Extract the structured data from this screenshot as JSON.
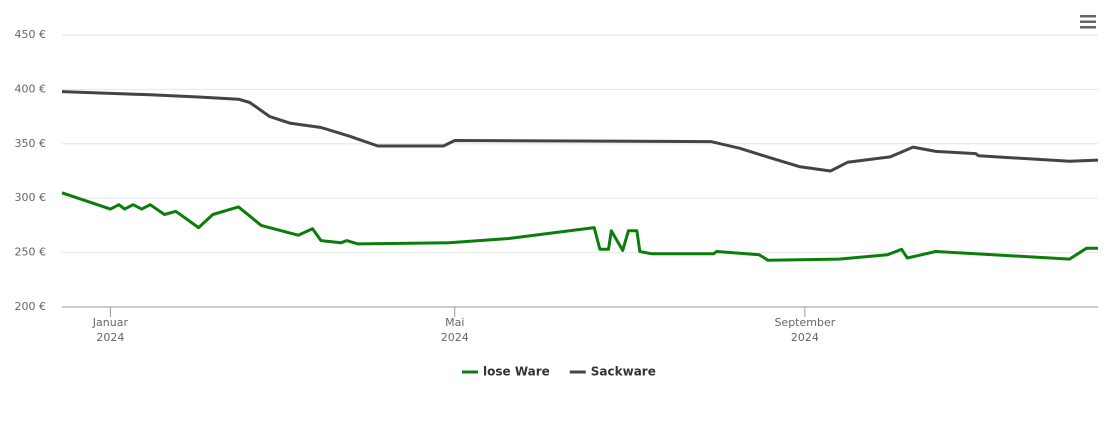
{
  "chart_data": {
    "type": "line",
    "x": null,
    "xlim": [
      "2023-12-15",
      "2024-12-13"
    ],
    "xticks": [
      {
        "value": "2024-01-01",
        "label": [
          "Januar",
          "2024"
        ]
      },
      {
        "value": "2024-05-01",
        "label": [
          "Mai",
          "2024"
        ]
      },
      {
        "value": "2024-09-01",
        "label": [
          "September",
          "2024"
        ]
      }
    ],
    "ylim": [
      200,
      450
    ],
    "yticks": [
      {
        "value": 200,
        "label": "200 €"
      },
      {
        "value": 250,
        "label": "250 €"
      },
      {
        "value": 300,
        "label": "300 €"
      },
      {
        "value": 350,
        "label": "350 €"
      },
      {
        "value": 400,
        "label": "400 €"
      },
      {
        "value": 450,
        "label": "450 €"
      }
    ],
    "grid": true,
    "legend": "bottom",
    "series": [
      {
        "name": "lose Ware",
        "color": "#0b7d0b",
        "x": [
          "2023-12-15",
          "2024-01-01",
          "2024-01-04",
          "2024-01-06",
          "2024-01-09",
          "2024-01-12",
          "2024-01-15",
          "2024-01-20",
          "2024-01-24",
          "2024-02-01",
          "2024-02-06",
          "2024-02-15",
          "2024-02-23",
          "2024-03-07",
          "2024-03-12",
          "2024-03-15",
          "2024-03-22",
          "2024-03-24",
          "2024-03-28",
          "2024-04-29",
          "2024-05-20",
          "2024-06-19",
          "2024-06-21",
          "2024-06-24",
          "2024-06-25",
          "2024-06-29",
          "2024-07-01",
          "2024-07-04",
          "2024-07-05",
          "2024-07-09",
          "2024-07-31",
          "2024-08-01",
          "2024-08-16",
          "2024-08-19",
          "2024-09-13",
          "2024-09-30",
          "2024-10-05",
          "2024-10-07",
          "2024-10-17",
          "2024-12-03",
          "2024-12-09",
          "2024-12-13"
        ],
        "values": [
          305,
          290,
          294,
          290,
          294,
          290,
          294,
          285,
          288,
          273,
          285,
          292,
          275,
          266,
          272,
          261,
          259,
          261,
          258,
          259,
          263,
          273,
          253,
          253,
          270,
          252,
          270,
          270,
          251,
          249,
          249,
          251,
          248,
          243,
          244,
          248,
          253,
          245,
          251,
          244,
          254,
          254
        ]
      },
      {
        "name": "Sackware",
        "color": "#434348",
        "x": [
          "2023-12-15",
          "2024-01-15",
          "2024-02-01",
          "2024-02-15",
          "2024-02-19",
          "2024-02-26",
          "2024-03-04",
          "2024-03-15",
          "2024-03-25",
          "2024-04-04",
          "2024-04-27",
          "2024-05-01",
          "2024-07-30",
          "2024-08-09",
          "2024-08-20",
          "2024-08-30",
          "2024-09-10",
          "2024-09-16",
          "2024-10-01",
          "2024-10-09",
          "2024-10-17",
          "2024-10-31",
          "2024-11-01",
          "2024-12-03",
          "2024-12-13"
        ],
        "values": [
          398,
          395,
          393,
          391,
          388,
          375,
          369,
          365,
          357,
          348,
          348,
          353,
          352,
          346,
          337,
          329,
          325,
          333,
          338,
          347,
          343,
          341,
          339,
          334,
          335
        ]
      }
    ]
  }
}
